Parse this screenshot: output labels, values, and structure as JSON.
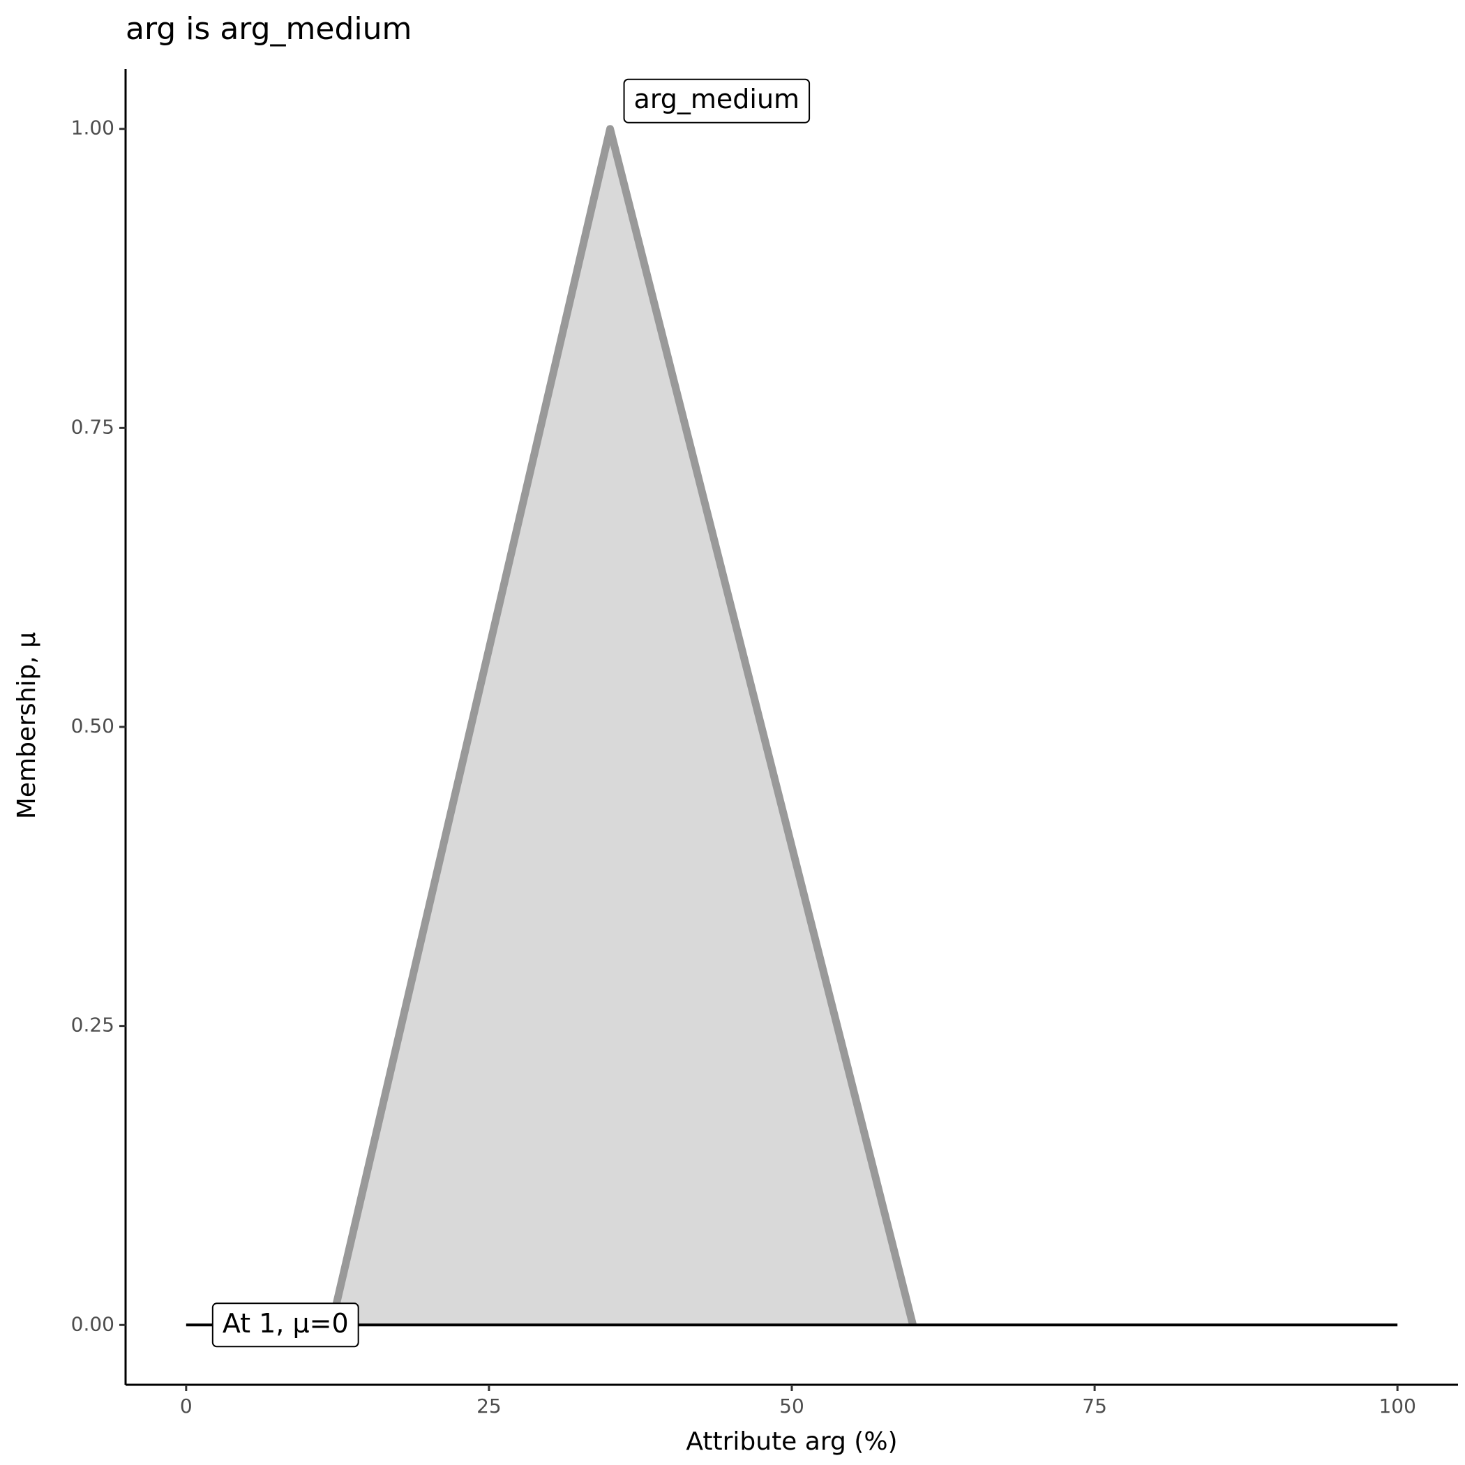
{
  "chart_data": {
    "type": "line",
    "title": "arg is arg_medium",
    "x_label": "Attribute arg (%)",
    "y_label": "Membership, μ",
    "series": [
      {
        "name": "arg_medium",
        "color": "#999999",
        "fill": "#d9d9d9",
        "x": [
          12,
          35,
          60
        ],
        "values": [
          0,
          1,
          0
        ]
      },
      {
        "name": "At 1, μ=0",
        "color": "#000000",
        "x": [
          0,
          100
        ],
        "values": [
          0,
          0
        ]
      }
    ],
    "xlim": [
      -5,
      105
    ],
    "xticks": [
      0,
      25,
      50,
      75,
      100
    ],
    "ylim": [
      -0.05,
      1.05
    ],
    "yticks": [
      {
        "value": 0,
        "label": "0.00"
      },
      {
        "value": 0.25,
        "label": "0.25"
      },
      {
        "value": 0.5,
        "label": "0.50"
      },
      {
        "value": 0.75,
        "label": "0.75"
      },
      {
        "value": 1,
        "label": "1.00"
      }
    ],
    "grid": false
  }
}
